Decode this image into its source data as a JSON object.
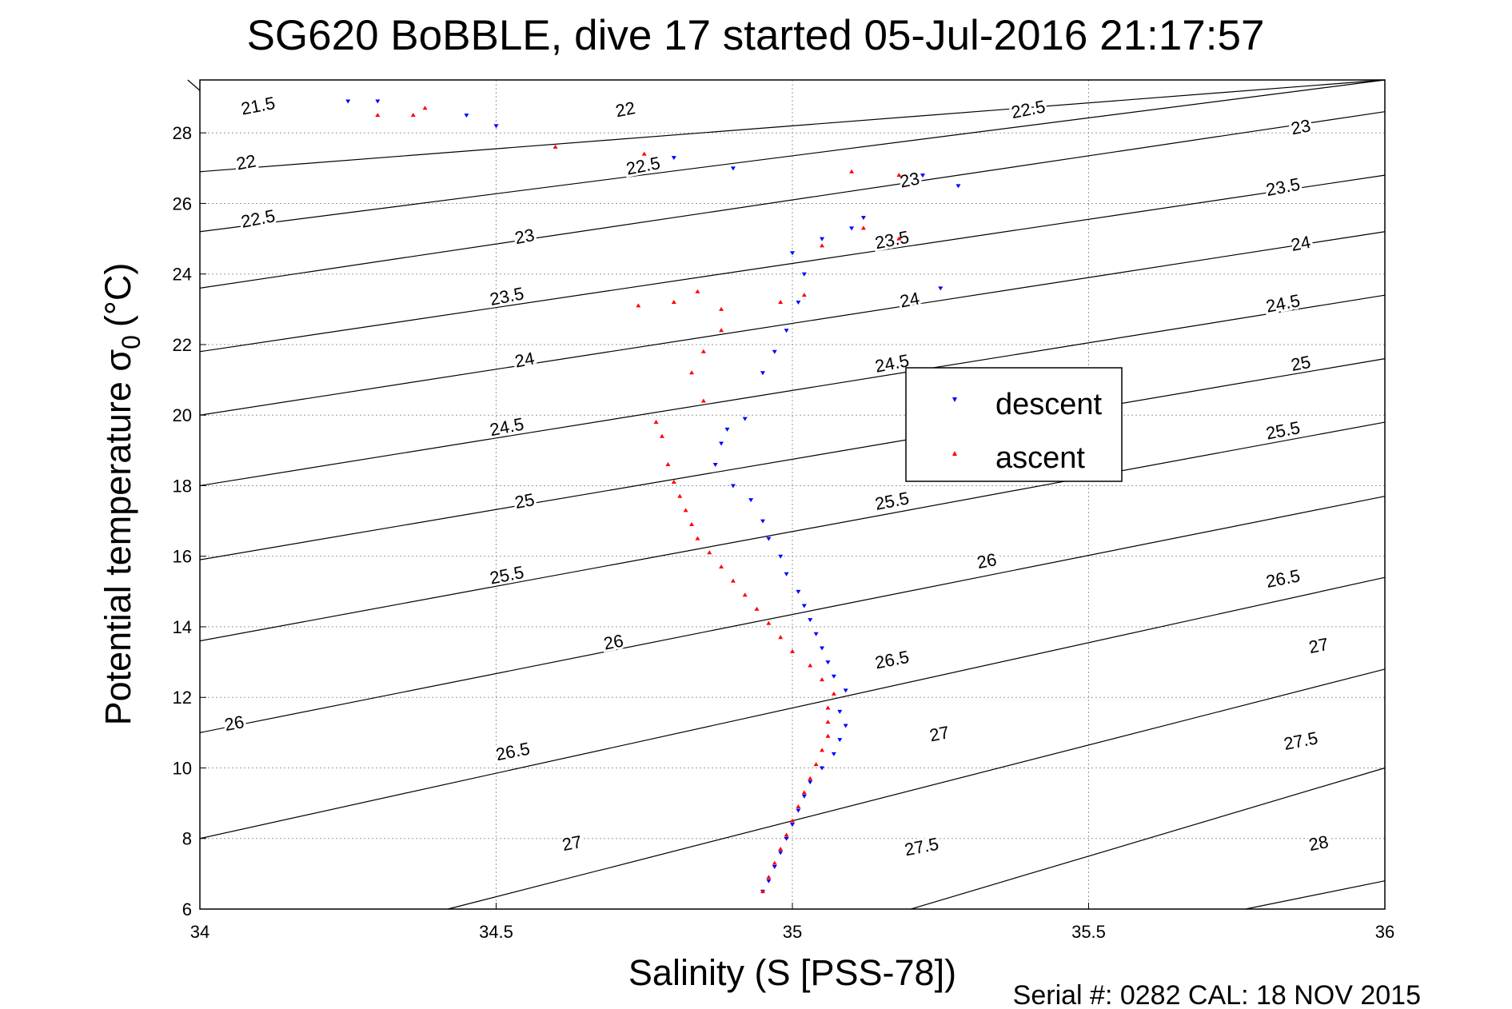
{
  "chart_data": {
    "type": "scatter",
    "title": "SG620 BoBBLE, dive 17 started 05-Jul-2016 21:17:57",
    "xlabel": "Salinity (S [PSS-78])",
    "ylabel_main": "Potential temperature σ",
    "ylabel_sub": "0",
    "ylabel_unit": "(°C)",
    "xlim": [
      34,
      36
    ],
    "ylim": [
      6,
      29.5
    ],
    "x_ticks": [
      34,
      34.5,
      35,
      35.5,
      36
    ],
    "x_tick_labels": [
      "34",
      "34.5",
      "35",
      "35.5",
      "36"
    ],
    "y_ticks": [
      6,
      8,
      10,
      12,
      14,
      16,
      18,
      20,
      22,
      24,
      26,
      28
    ],
    "y_tick_labels": [
      "6",
      "8",
      "10",
      "12",
      "14",
      "16",
      "18",
      "20",
      "22",
      "24",
      "26",
      "28"
    ],
    "grid": true,
    "legend_position": "right",
    "footer": "Serial #: 0282  CAL: 18 NOV 2015",
    "contours": [
      {
        "label": "21.5",
        "s_at_s34": 34.0,
        "t_left": 29.2,
        "t_right": 0
      },
      {
        "label": "22",
        "t_left": 26.9,
        "t_right": 29.5
      },
      {
        "label": "22.5",
        "t_left": 25.2,
        "t_right": 29.5
      },
      {
        "label": "23",
        "t_left": 23.6,
        "t_right": 28.6
      },
      {
        "label": "23.5",
        "t_left": 21.8,
        "t_right": 26.8
      },
      {
        "label": "24",
        "t_left": 20.0,
        "t_right": 25.2
      },
      {
        "label": "24.5",
        "t_left": 18.0,
        "t_right": 23.4
      },
      {
        "label": "25",
        "t_left": 15.9,
        "t_right": 21.6
      },
      {
        "label": "25.5",
        "t_left": 13.6,
        "t_right": 19.8
      },
      {
        "label": "26",
        "t_left": 11.0,
        "t_right": 17.7
      },
      {
        "label": "26.5",
        "t_left": 8.0,
        "t_right": 15.4
      },
      {
        "label": "27",
        "t_left": 4.2,
        "t_right": 12.8
      },
      {
        "label": "27.5",
        "t_left": 0,
        "t_right": 10.0
      },
      {
        "label": "28",
        "t_left": 0,
        "t_right": 6.8
      }
    ],
    "contour_labels": [
      {
        "label": "21.5",
        "s": 34.1,
        "t": 28.6
      },
      {
        "label": "22",
        "s": 34.08,
        "t": 27.0
      },
      {
        "label": "22.5",
        "s": 34.1,
        "t": 25.4
      },
      {
        "label": "22",
        "s": 34.72,
        "t": 28.5
      },
      {
        "label": "22.5",
        "s": 34.75,
        "t": 26.9
      },
      {
        "label": "22.5",
        "s": 35.4,
        "t": 28.5
      },
      {
        "label": "23",
        "s": 34.55,
        "t": 24.9
      },
      {
        "label": "23",
        "s": 35.2,
        "t": 26.5
      },
      {
        "label": "23",
        "s": 35.86,
        "t": 28.0
      },
      {
        "label": "23.5",
        "s": 34.52,
        "t": 23.2
      },
      {
        "label": "23.5",
        "s": 35.17,
        "t": 24.8
      },
      {
        "label": "23.5",
        "s": 35.83,
        "t": 26.3
      },
      {
        "label": "24",
        "s": 34.55,
        "t": 21.4
      },
      {
        "label": "24",
        "s": 35.2,
        "t": 23.1
      },
      {
        "label": "24",
        "s": 35.86,
        "t": 24.7
      },
      {
        "label": "24.5",
        "s": 34.52,
        "t": 19.5
      },
      {
        "label": "24.5",
        "s": 35.17,
        "t": 21.3
      },
      {
        "label": "24.5",
        "s": 35.83,
        "t": 23.0
      },
      {
        "label": "25",
        "s": 34.55,
        "t": 17.4
      },
      {
        "label": "25",
        "s": 35.86,
        "t": 21.3
      },
      {
        "label": "25.5",
        "s": 34.52,
        "t": 15.3
      },
      {
        "label": "25.5",
        "s": 35.17,
        "t": 17.4
      },
      {
        "label": "25.5",
        "s": 35.83,
        "t": 19.4
      },
      {
        "label": "26",
        "s": 34.7,
        "t": 13.4
      },
      {
        "label": "26",
        "s": 35.33,
        "t": 15.7
      },
      {
        "label": "26",
        "s": 34.06,
        "t": 11.1
      },
      {
        "label": "26.5",
        "s": 34.53,
        "t": 10.3
      },
      {
        "label": "26.5",
        "s": 35.17,
        "t": 12.9
      },
      {
        "label": "26.5",
        "s": 35.83,
        "t": 15.2
      },
      {
        "label": "27",
        "s": 34.63,
        "t": 7.7
      },
      {
        "label": "27",
        "s": 35.25,
        "t": 10.8
      },
      {
        "label": "27",
        "s": 35.89,
        "t": 13.3
      },
      {
        "label": "27.5",
        "s": 35.22,
        "t": 7.6
      },
      {
        "label": "27.5",
        "s": 35.86,
        "t": 10.6
      },
      {
        "label": "28",
        "s": 35.89,
        "t": 7.7
      }
    ],
    "series": [
      {
        "name": "descent",
        "color": "#0000ff",
        "marker": "triangle-down",
        "points": [
          [
            34.95,
            6.5
          ],
          [
            34.96,
            6.8
          ],
          [
            34.97,
            7.2
          ],
          [
            34.98,
            7.6
          ],
          [
            34.99,
            8.0
          ],
          [
            35.0,
            8.4
          ],
          [
            35.01,
            8.8
          ],
          [
            35.02,
            9.2
          ],
          [
            35.03,
            9.6
          ],
          [
            35.05,
            10.0
          ],
          [
            35.07,
            10.4
          ],
          [
            35.08,
            10.8
          ],
          [
            35.09,
            11.2
          ],
          [
            35.08,
            11.6
          ],
          [
            35.09,
            12.2
          ],
          [
            35.07,
            12.6
          ],
          [
            35.06,
            13.0
          ],
          [
            35.05,
            13.4
          ],
          [
            35.04,
            13.8
          ],
          [
            35.03,
            14.2
          ],
          [
            35.02,
            14.6
          ],
          [
            35.01,
            15.0
          ],
          [
            34.99,
            15.5
          ],
          [
            34.98,
            16.0
          ],
          [
            34.96,
            16.5
          ],
          [
            34.95,
            17.0
          ],
          [
            34.93,
            17.6
          ],
          [
            34.9,
            18.0
          ],
          [
            34.87,
            18.6
          ],
          [
            34.88,
            19.2
          ],
          [
            34.89,
            19.6
          ],
          [
            34.92,
            19.9
          ],
          [
            34.95,
            21.2
          ],
          [
            34.97,
            21.8
          ],
          [
            34.99,
            22.4
          ],
          [
            35.01,
            23.2
          ],
          [
            35.02,
            24.0
          ],
          [
            35.0,
            24.6
          ],
          [
            35.05,
            25.0
          ],
          [
            35.1,
            25.3
          ],
          [
            35.12,
            25.6
          ],
          [
            35.22,
            26.8
          ],
          [
            35.28,
            26.5
          ],
          [
            35.25,
            23.6
          ],
          [
            34.8,
            27.3
          ],
          [
            34.9,
            27.0
          ],
          [
            34.45,
            28.5
          ],
          [
            34.5,
            28.2
          ],
          [
            34.3,
            28.9
          ],
          [
            34.25,
            28.9
          ]
        ]
      },
      {
        "name": "ascent",
        "color": "#ff0000",
        "marker": "triangle-up",
        "points": [
          [
            34.95,
            6.5
          ],
          [
            34.96,
            6.9
          ],
          [
            34.97,
            7.3
          ],
          [
            34.98,
            7.7
          ],
          [
            34.99,
            8.1
          ],
          [
            35.0,
            8.5
          ],
          [
            35.01,
            8.9
          ],
          [
            35.02,
            9.3
          ],
          [
            35.03,
            9.7
          ],
          [
            35.04,
            10.1
          ],
          [
            35.05,
            10.5
          ],
          [
            35.06,
            10.9
          ],
          [
            35.06,
            11.3
          ],
          [
            35.06,
            11.7
          ],
          [
            35.07,
            12.1
          ],
          [
            35.05,
            12.5
          ],
          [
            35.03,
            12.9
          ],
          [
            35.0,
            13.3
          ],
          [
            34.98,
            13.7
          ],
          [
            34.96,
            14.1
          ],
          [
            34.94,
            14.5
          ],
          [
            34.92,
            14.9
          ],
          [
            34.9,
            15.3
          ],
          [
            34.88,
            15.7
          ],
          [
            34.86,
            16.1
          ],
          [
            34.84,
            16.5
          ],
          [
            34.83,
            16.9
          ],
          [
            34.82,
            17.3
          ],
          [
            34.81,
            17.7
          ],
          [
            34.8,
            18.1
          ],
          [
            34.79,
            18.6
          ],
          [
            34.78,
            19.4
          ],
          [
            34.77,
            19.8
          ],
          [
            34.85,
            20.4
          ],
          [
            34.83,
            21.2
          ],
          [
            34.85,
            21.8
          ],
          [
            34.88,
            22.4
          ],
          [
            34.88,
            23.0
          ],
          [
            34.84,
            23.5
          ],
          [
            34.8,
            23.2
          ],
          [
            34.74,
            23.1
          ],
          [
            34.98,
            23.2
          ],
          [
            35.02,
            23.4
          ],
          [
            35.05,
            24.8
          ],
          [
            35.12,
            25.3
          ],
          [
            35.18,
            25.0
          ],
          [
            35.18,
            26.8
          ],
          [
            35.1,
            26.9
          ],
          [
            34.75,
            27.4
          ],
          [
            34.6,
            27.6
          ],
          [
            34.38,
            28.7
          ],
          [
            34.36,
            28.5
          ],
          [
            34.3,
            28.5
          ]
        ]
      }
    ]
  },
  "legend": {
    "descent_label": "descent",
    "ascent_label": "ascent"
  }
}
